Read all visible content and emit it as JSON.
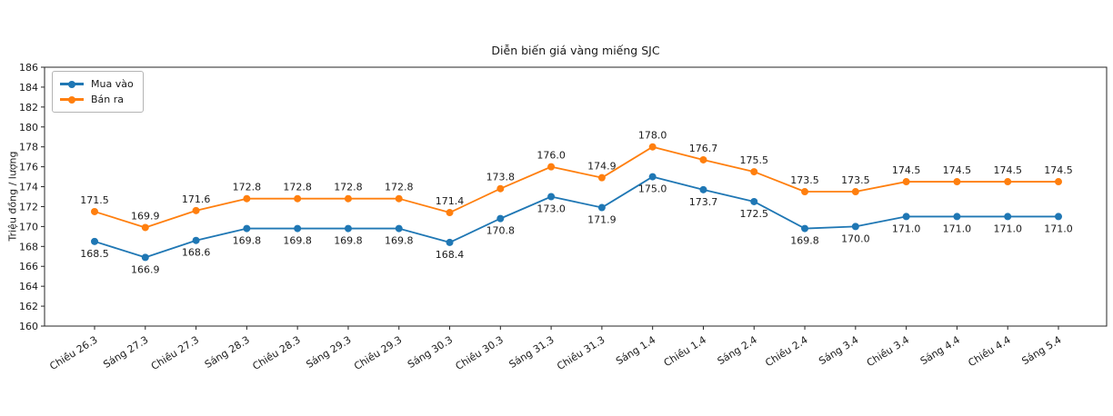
{
  "window": {
    "background": "#ffffff"
  },
  "chart_data": {
    "type": "line",
    "title": "Diễn biến giá vàng miếng SJC",
    "xlabel": "",
    "ylabel": "Triệu đồng / lượng",
    "ylim": [
      160,
      186
    ],
    "ytick_step": 2,
    "grid": false,
    "legend_position": "upper left",
    "value_labels": true,
    "categories": [
      "Chiều 26.3",
      "Sáng 27.3",
      "Chiều 27.3",
      "Sáng 28.3",
      "Chiều 28.3",
      "Sáng 29.3",
      "Chiều 29.3",
      "Sáng 30.3",
      "Chiều 30.3",
      "Sáng 31.3",
      "Chiều 31.3",
      "Sáng 1.4",
      "Chiều 1.4",
      "Sáng 2.4",
      "Chiều 2.4",
      "Sáng 3.4",
      "Chiều 3.4",
      "Sáng 4.4",
      "Chiều 4.4",
      "Sáng 5.4"
    ],
    "series": [
      {
        "name": "Mua vào",
        "color": "#1f77b4",
        "label_side": "below",
        "values": [
          168.5,
          166.9,
          168.6,
          169.8,
          169.8,
          169.8,
          169.8,
          168.4,
          170.8,
          173.0,
          171.9,
          175.0,
          173.7,
          172.5,
          169.8,
          170.0,
          171.0,
          171.0,
          171.0,
          171.0
        ]
      },
      {
        "name": "Bán ra",
        "color": "#ff7f0e",
        "label_side": "above",
        "values": [
          171.5,
          169.9,
          171.6,
          172.8,
          172.8,
          172.8,
          172.8,
          171.4,
          173.8,
          176.0,
          174.9,
          178.0,
          176.7,
          175.5,
          173.5,
          173.5,
          174.5,
          174.5,
          174.5,
          174.5
        ]
      }
    ]
  }
}
